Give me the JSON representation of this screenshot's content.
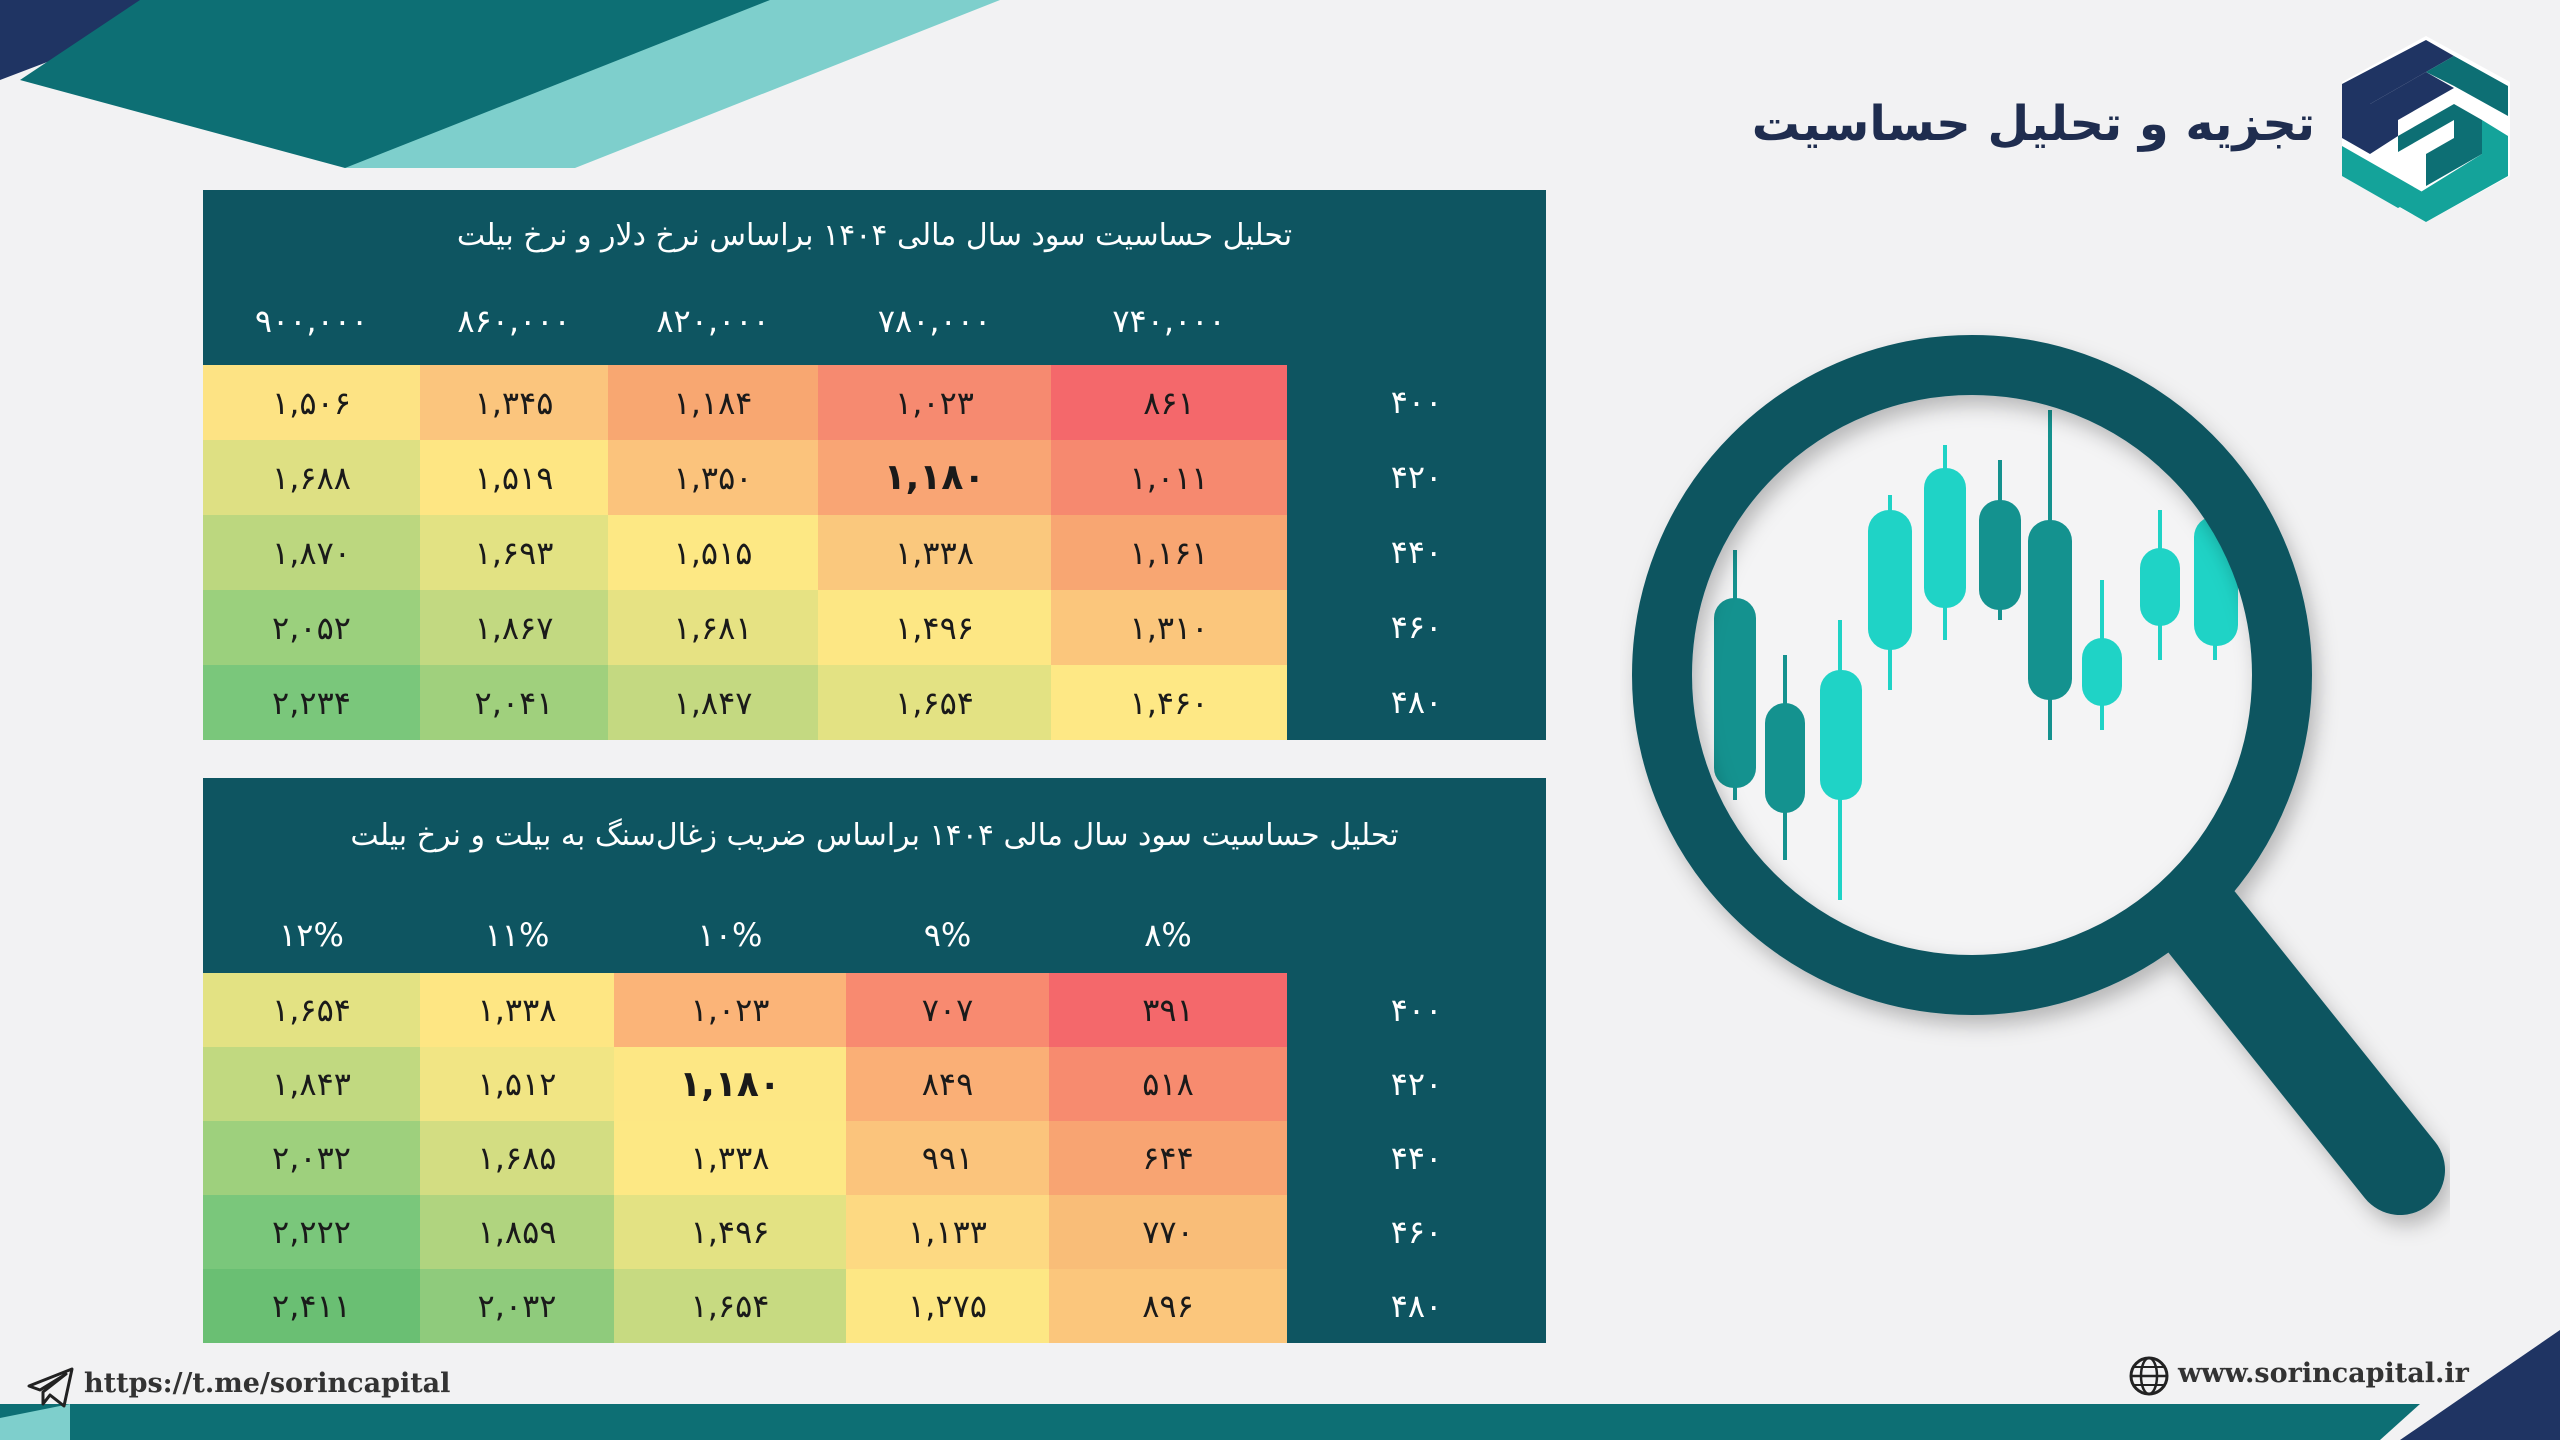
{
  "header": {
    "title": "تجزیه و تحلیل حساسیت"
  },
  "table1": {
    "title": "تحلیل حساسیت سود سال مالی ۱۴۰۴ براساس نرخ دلار و نرخ بیلت",
    "columns": [
      "۹۰۰,۰۰۰",
      "۸۶۰,۰۰۰",
      "۸۲۰,۰۰۰",
      "۷۸۰,۰۰۰",
      "۷۴۰,۰۰۰"
    ],
    "rows": [
      {
        "label": "۴۰۰",
        "values": [
          "۱,۵۰۶",
          "۱,۳۴۵",
          "۱,۱۸۴",
          "۱,۰۲۳",
          "۸۶۱"
        ]
      },
      {
        "label": "۴۲۰",
        "values": [
          "۱,۶۸۸",
          "۱,۵۱۹",
          "۱,۳۵۰",
          "۱,۱۸۰",
          "۱,۰۱۱"
        ]
      },
      {
        "label": "۴۴۰",
        "values": [
          "۱,۸۷۰",
          "۱,۶۹۳",
          "۱,۵۱۵",
          "۱,۳۳۸",
          "۱,۱۶۱"
        ]
      },
      {
        "label": "۴۶۰",
        "values": [
          "۲,۰۵۲",
          "۱,۸۶۷",
          "۱,۶۸۱",
          "۱,۴۹۶",
          "۱,۳۱۰"
        ]
      },
      {
        "label": "۴۸۰",
        "values": [
          "۲,۲۳۴",
          "۲,۰۴۱",
          "۱,۸۴۷",
          "۱,۶۵۴",
          "۱,۴۶۰"
        ]
      }
    ],
    "colors": [
      [
        "#fde384",
        "#fbc57d",
        "#f8a771",
        "#f68a70",
        "#f4686b"
      ],
      [
        "#dee083",
        "#fee683",
        "#fbc37c",
        "#f9a574",
        "#f6896f"
      ],
      [
        "#bcd77f",
        "#e2e283",
        "#fde884",
        "#fac87d",
        "#f8a672"
      ],
      [
        "#9bd07d",
        "#c2d981",
        "#e6e283",
        "#fde784",
        "#fbc67c"
      ],
      [
        "#7ac77b",
        "#a0d07d",
        "#c4d981",
        "#e3e283",
        "#fee885"
      ]
    ],
    "bold_cell": [
      1,
      3
    ]
  },
  "table2": {
    "title": "تحلیل حساسیت سود سال مالی ۱۴۰۴ براساس ضریب زغال‌سنگ به بیلت و نرخ بیلت",
    "columns": [
      "۱۲%",
      "۱۱%",
      "۱۰%",
      "۹%",
      "۸%"
    ],
    "rows": [
      {
        "label": "۴۰۰",
        "values": [
          "۱,۶۵۴",
          "۱,۳۳۸",
          "۱,۰۲۳",
          "۷۰۷",
          "۳۹۱"
        ]
      },
      {
        "label": "۴۲۰",
        "values": [
          "۱,۸۴۳",
          "۱,۵۱۲",
          "۱,۱۸۰",
          "۸۴۹",
          "۵۱۸"
        ]
      },
      {
        "label": "۴۴۰",
        "values": [
          "۲,۰۳۲",
          "۱,۶۸۵",
          "۱,۳۳۸",
          "۹۹۱",
          "۶۴۴"
        ]
      },
      {
        "label": "۴۶۰",
        "values": [
          "۲,۲۲۲",
          "۱,۸۵۹",
          "۱,۴۹۶",
          "۱,۱۳۳",
          "۷۷۰"
        ]
      },
      {
        "label": "۴۸۰",
        "values": [
          "۲,۴۱۱",
          "۲,۰۳۲",
          "۱,۶۵۴",
          "۱,۲۷۵",
          "۸۹۶"
        ]
      }
    ],
    "colors": [
      [
        "#e3e283",
        "#fee683",
        "#fbb478",
        "#f88a70",
        "#f4686b"
      ],
      [
        "#c1d980",
        "#f1e584",
        "#fde784",
        "#faaf76",
        "#f78b6f"
      ],
      [
        "#9ed07d",
        "#d3dd82",
        "#fde884",
        "#fbc47c",
        "#f8a472"
      ],
      [
        "#7ac77b",
        "#b0d47f",
        "#e3e283",
        "#fdd982",
        "#f9bd78"
      ],
      [
        "#6abf73",
        "#8fcb7c",
        "#c7da81",
        "#fde784",
        "#fbc67c"
      ]
    ],
    "bold_cell": [
      1,
      2
    ]
  },
  "footer": {
    "telegram": "https://t.me/sorincapital",
    "website": "www.sorincapital.ir"
  },
  "colors": {
    "panel": "#0e5561",
    "navy": "#1f3463",
    "teal": "#0d6f74",
    "teal_light": "#7ecfcc",
    "candle_dark": "#14928f",
    "candle_bright": "#1fd3c6"
  },
  "icons": [
    "logo-icon",
    "magnifier-icon",
    "telegram-icon",
    "globe-icon"
  ]
}
